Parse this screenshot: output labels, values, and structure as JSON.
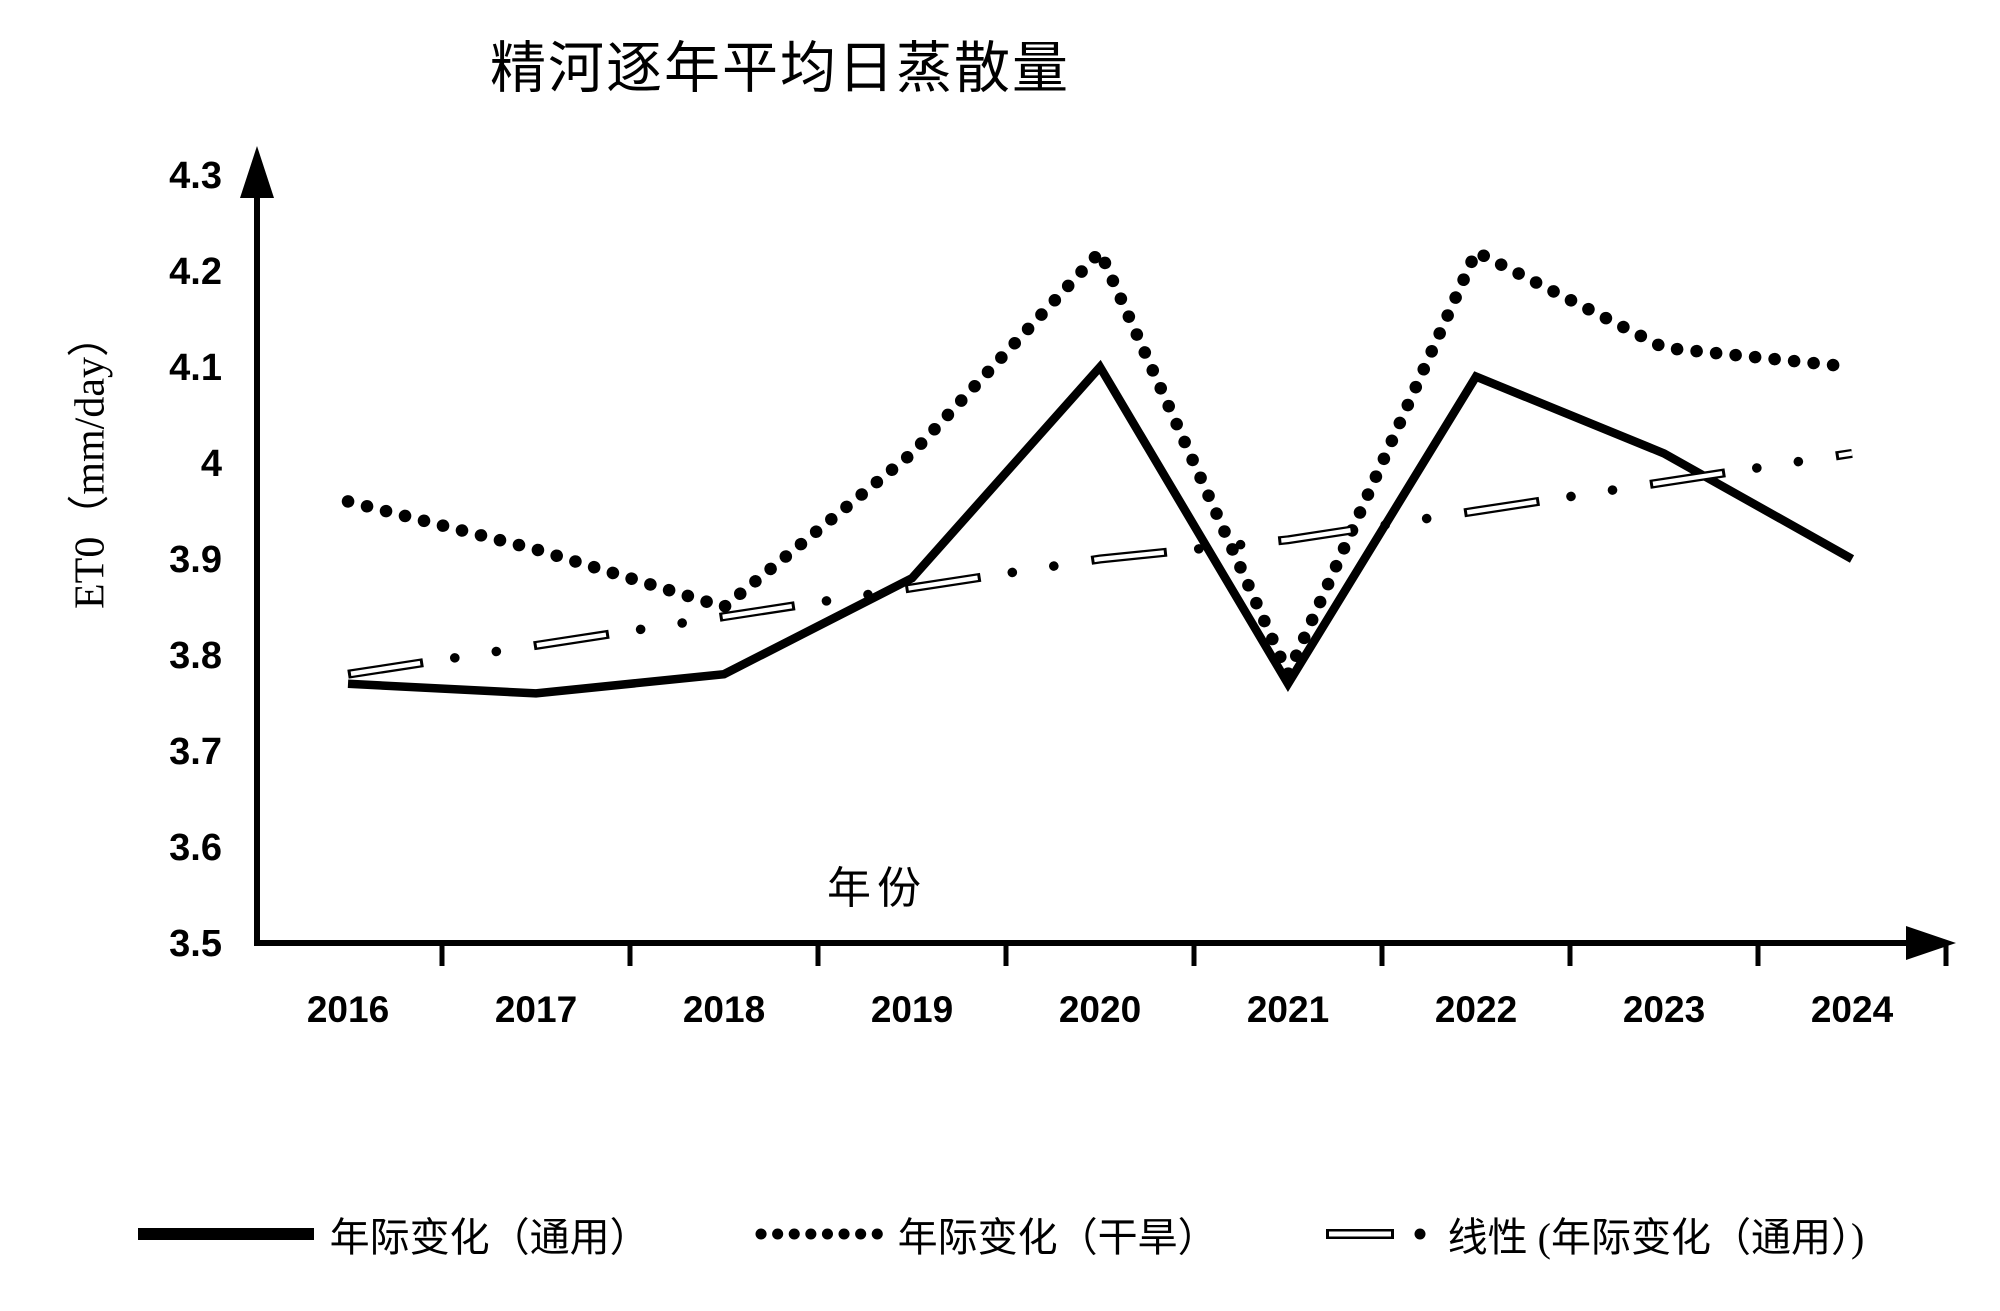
{
  "page": {
    "background": "#ffffff",
    "foreground": "#000000"
  },
  "chart_data": {
    "type": "line",
    "title": "精河逐年平均日蒸散量",
    "xlabel": "年份",
    "ylabel": "ET0（mm/day）",
    "x": [
      "2016",
      "2017",
      "2018",
      "2019",
      "2020",
      "2021",
      "2022",
      "2023",
      "2024"
    ],
    "yticks": [
      "3.5",
      "3.6",
      "3.7",
      "3.8",
      "3.9",
      "4",
      "4.1",
      "4.2",
      "4.3"
    ],
    "ylim": [
      3.5,
      4.3
    ],
    "xlim_years": [
      2016,
      2024
    ],
    "grid": false,
    "legend_position": "bottom",
    "axis_arrows": true,
    "series": [
      {
        "name": "年际变化（通用）",
        "style": "solid",
        "color": "#000000",
        "values": [
          3.77,
          3.76,
          3.78,
          3.88,
          4.1,
          3.77,
          4.09,
          4.01,
          3.9
        ]
      },
      {
        "name": "年际变化（干旱）",
        "style": "dotted",
        "color": "#000000",
        "values": [
          3.96,
          3.91,
          3.85,
          4.01,
          4.22,
          3.78,
          4.22,
          4.12,
          4.1
        ]
      },
      {
        "name": "线性 (年际变化（通用）)",
        "style": "hollow-long-dash-dot-dot",
        "color": "#000000",
        "role": "linear-trend",
        "values": [
          3.78,
          3.81,
          3.84,
          3.87,
          3.9,
          3.92,
          3.95,
          3.98,
          4.01
        ]
      }
    ]
  }
}
